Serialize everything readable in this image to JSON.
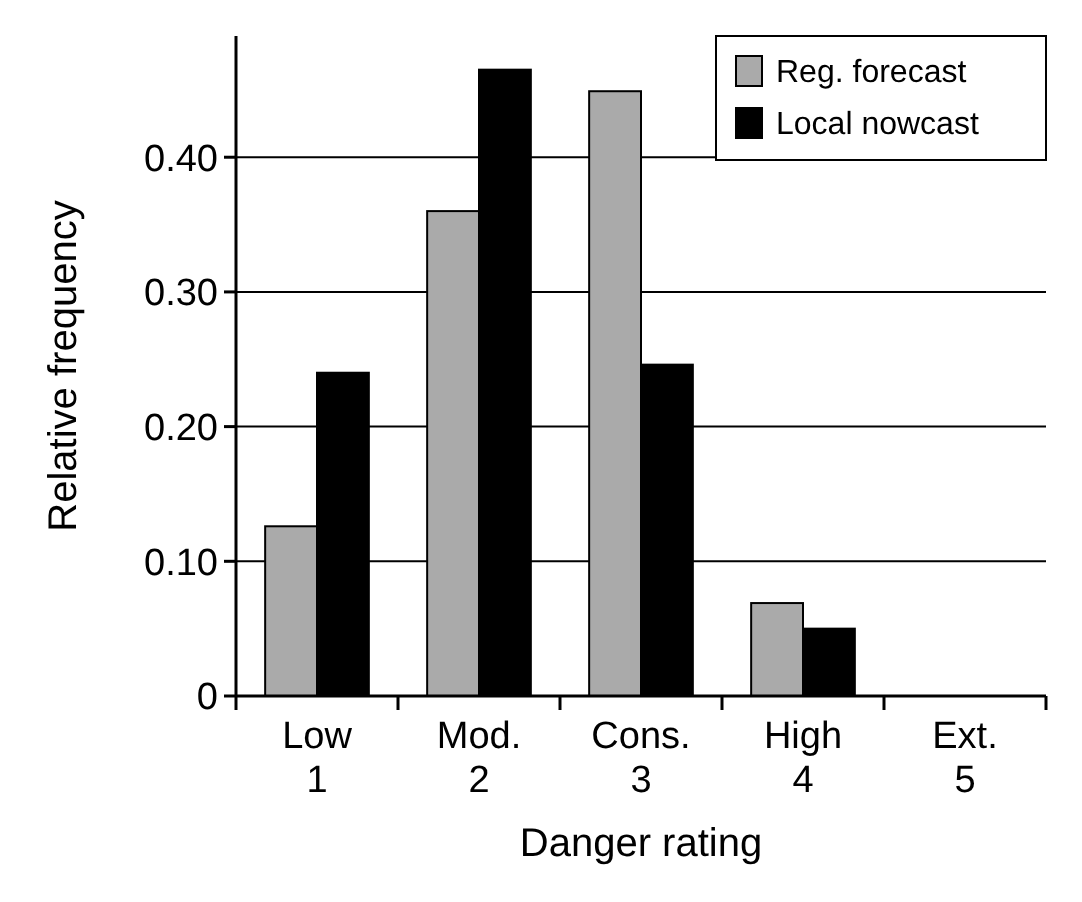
{
  "chart_data": {
    "type": "bar",
    "xlabel": "Danger rating",
    "ylabel": "Relative frequency",
    "categories": [
      "Low\n1",
      "Mod.\n2",
      "Cons.\n3",
      "High\n4",
      "Ext.\n5"
    ],
    "series": [
      {
        "name": "Reg. forecast",
        "color": "#aaaaaa",
        "values": [
          0.126,
          0.36,
          0.449,
          0.069,
          0
        ]
      },
      {
        "name": "Local nowcast",
        "color": "#000000",
        "values": [
          0.24,
          0.465,
          0.246,
          0.05,
          0
        ]
      }
    ],
    "ylim": [
      0,
      0.49
    ],
    "yticks": [
      {
        "value": 0,
        "label": "0"
      },
      {
        "value": 0.1,
        "label": "0.10"
      },
      {
        "value": 0.2,
        "label": "0.20"
      },
      {
        "value": 0.3,
        "label": "0.30"
      },
      {
        "value": 0.4,
        "label": "0.40"
      }
    ],
    "grid": "y",
    "legend": "top right"
  }
}
